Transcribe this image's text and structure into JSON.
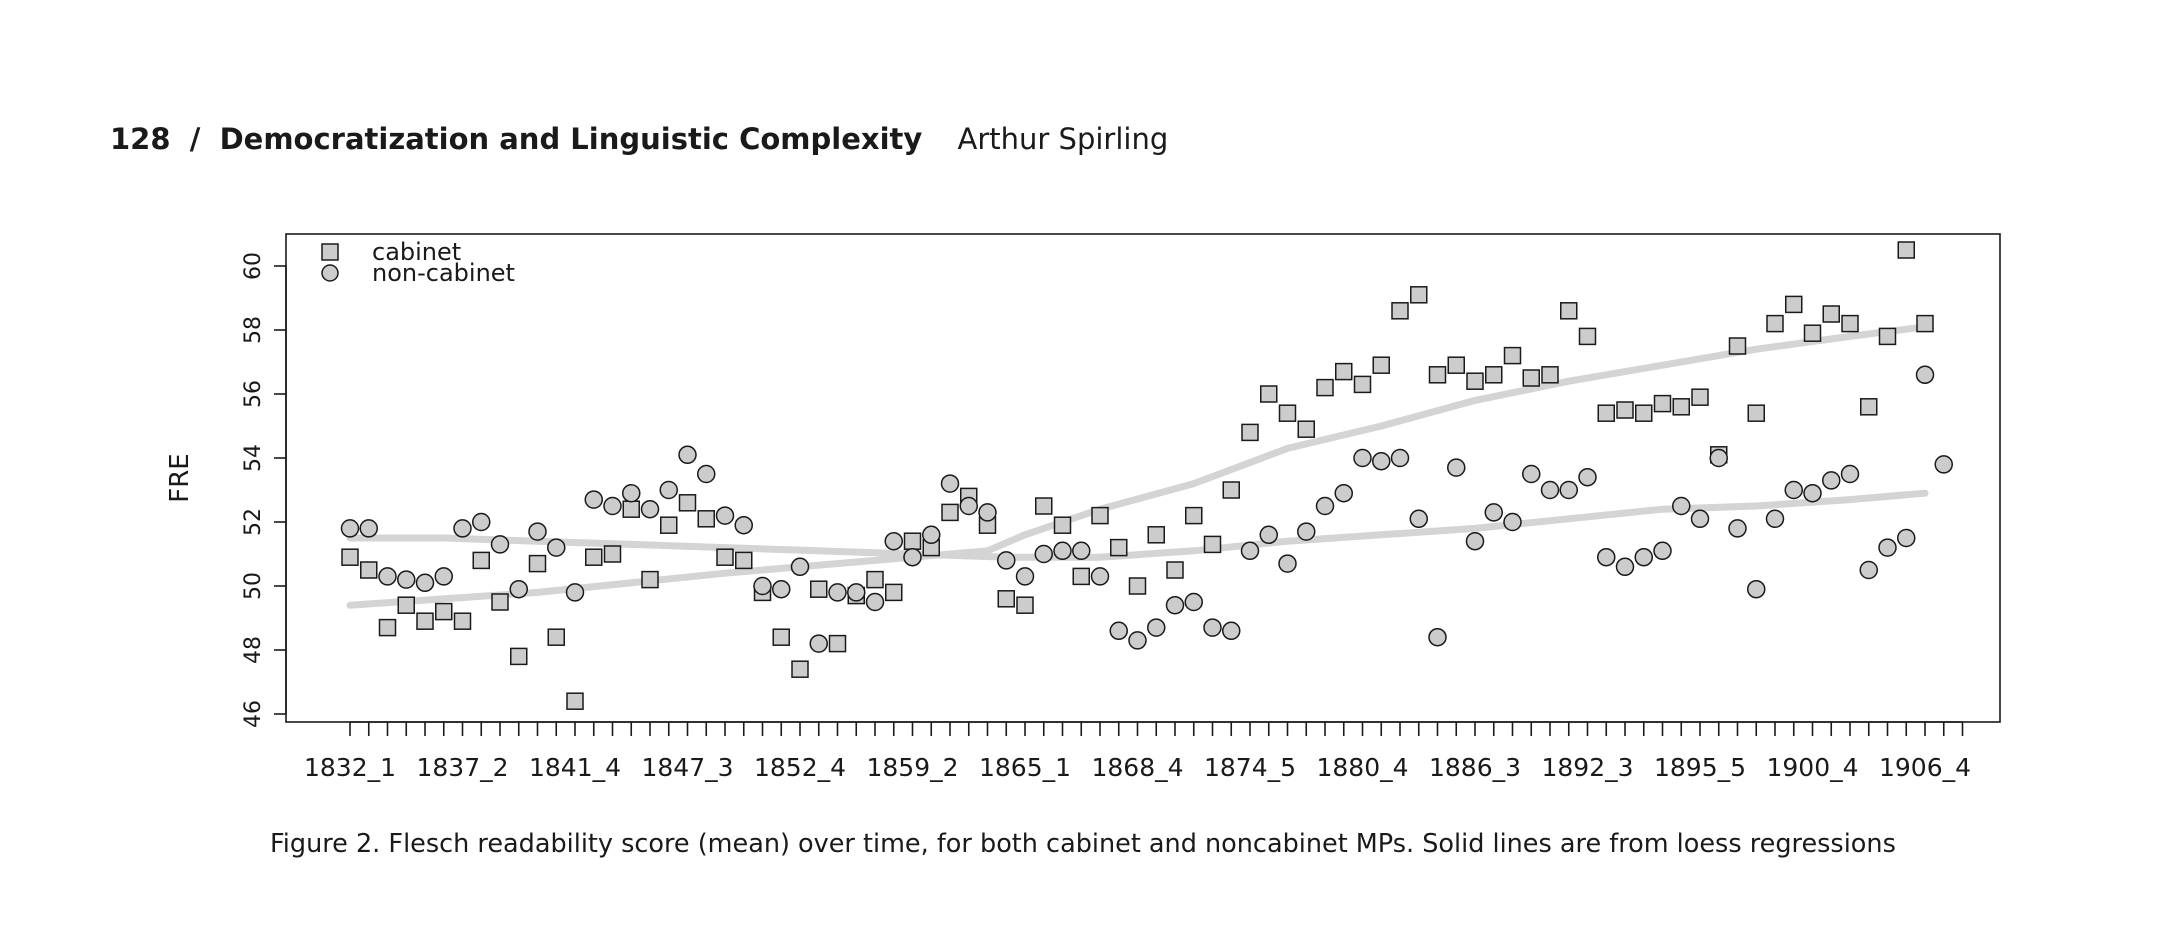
{
  "header": {
    "page_number": "128",
    "separator": "/",
    "title": "Democratization and Linguistic Complexity",
    "author": "Arthur Spirling"
  },
  "caption": "Figure 2. Flesch readability score (mean) over time, for both cabinet and noncabinet MPs. Solid lines are from loess regressions",
  "chart_data": {
    "type": "scatter",
    "ylabel": "FRE",
    "xlabel": "",
    "ylim": [
      45.8,
      61.0
    ],
    "yticks": [
      46,
      48,
      50,
      52,
      54,
      56,
      58,
      60
    ],
    "n_x": 87,
    "x_tick_labels": [
      {
        "index": 0,
        "label": "1832_1"
      },
      {
        "index": 6,
        "label": "1837_2"
      },
      {
        "index": 12,
        "label": "1841_4"
      },
      {
        "index": 18,
        "label": "1847_3"
      },
      {
        "index": 24,
        "label": "1852_4"
      },
      {
        "index": 30,
        "label": "1859_2"
      },
      {
        "index": 36,
        "label": "1865_1"
      },
      {
        "index": 42,
        "label": "1868_4"
      },
      {
        "index": 48,
        "label": "1874_5"
      },
      {
        "index": 54,
        "label": "1880_4"
      },
      {
        "index": 60,
        "label": "1886_3"
      },
      {
        "index": 66,
        "label": "1892_3"
      },
      {
        "index": 72,
        "label": "1895_5"
      },
      {
        "index": 78,
        "label": "1900_4"
      },
      {
        "index": 84,
        "label": "1906_4"
      }
    ],
    "legend": {
      "position": "top-left"
    },
    "colors": {
      "marker_fill": "#cccccc",
      "marker_stroke": "#1a1a1a",
      "loess_line": "#d4d4d4"
    },
    "series": [
      {
        "name": "cabinet",
        "marker": "square",
        "values": [
          50.9,
          50.5,
          48.7,
          49.4,
          48.9,
          49.2,
          48.9,
          50.8,
          49.5,
          47.8,
          50.7,
          48.4,
          46.4,
          50.9,
          51.0,
          52.4,
          50.2,
          51.9,
          52.6,
          52.1,
          50.9,
          50.8,
          49.8,
          48.4,
          47.4,
          49.9,
          48.2,
          49.7,
          50.2,
          49.8,
          51.4,
          51.2,
          52.3,
          52.8,
          51.9,
          49.6,
          49.4,
          52.5,
          51.9,
          50.3,
          52.2,
          51.2,
          50.0,
          51.6,
          50.5,
          52.2,
          51.3,
          53.0,
          54.8,
          56.0,
          55.4,
          54.9,
          56.2,
          56.7,
          56.3,
          56.9,
          58.6,
          59.1,
          56.6,
          56.9,
          56.4,
          56.6,
          57.2,
          56.5,
          56.6,
          58.6,
          57.8,
          55.4,
          55.5,
          55.4,
          55.7,
          55.6,
          55.9,
          54.1,
          57.5,
          55.4,
          58.2,
          58.8,
          57.9,
          58.5,
          58.2,
          55.6,
          57.8,
          60.5,
          58.2,
          null,
          null
        ]
      },
      {
        "name": "non-cabinet",
        "marker": "circle",
        "values": [
          51.8,
          51.8,
          50.3,
          50.2,
          50.1,
          50.3,
          51.8,
          52.0,
          51.3,
          49.9,
          51.7,
          51.2,
          49.8,
          52.7,
          52.5,
          52.9,
          52.4,
          53.0,
          54.1,
          53.5,
          52.2,
          51.9,
          50.0,
          49.9,
          50.6,
          48.2,
          49.8,
          49.8,
          49.5,
          51.4,
          50.9,
          51.6,
          53.2,
          52.5,
          52.3,
          50.8,
          50.3,
          51.0,
          51.1,
          51.1,
          50.3,
          48.6,
          48.3,
          48.7,
          49.4,
          49.5,
          48.7,
          48.6,
          51.1,
          51.6,
          50.7,
          51.7,
          52.5,
          52.9,
          54.0,
          53.9,
          54.0,
          52.1,
          48.4,
          53.7,
          51.4,
          52.3,
          52.0,
          53.5,
          53.0,
          53.0,
          53.4,
          50.9,
          50.6,
          50.9,
          51.1,
          52.5,
          52.1,
          54.0,
          51.8,
          49.9,
          52.1,
          53.0,
          52.9,
          53.3,
          53.5,
          50.5,
          51.2,
          51.5,
          56.6,
          53.8,
          null
        ]
      }
    ],
    "loess": [
      {
        "name": "cabinet",
        "points": [
          [
            0,
            49.4
          ],
          [
            10,
            49.8
          ],
          [
            20,
            50.4
          ],
          [
            30,
            50.9
          ],
          [
            34,
            51.1
          ],
          [
            36,
            51.6
          ],
          [
            40,
            52.4
          ],
          [
            45,
            53.2
          ],
          [
            50,
            54.3
          ],
          [
            55,
            55.0
          ],
          [
            60,
            55.8
          ],
          [
            65,
            56.4
          ],
          [
            70,
            56.9
          ],
          [
            75,
            57.4
          ],
          [
            80,
            57.8
          ],
          [
            84,
            58.1
          ]
        ]
      },
      {
        "name": "non-cabinet",
        "points": [
          [
            0,
            51.5
          ],
          [
            5,
            51.5
          ],
          [
            10,
            51.4
          ],
          [
            20,
            51.2
          ],
          [
            30,
            51.0
          ],
          [
            35,
            50.9
          ],
          [
            40,
            50.9
          ],
          [
            45,
            51.1
          ],
          [
            50,
            51.4
          ],
          [
            55,
            51.6
          ],
          [
            60,
            51.8
          ],
          [
            65,
            52.1
          ],
          [
            70,
            52.4
          ],
          [
            75,
            52.5
          ],
          [
            80,
            52.7
          ],
          [
            84,
            52.9
          ]
        ]
      }
    ]
  }
}
